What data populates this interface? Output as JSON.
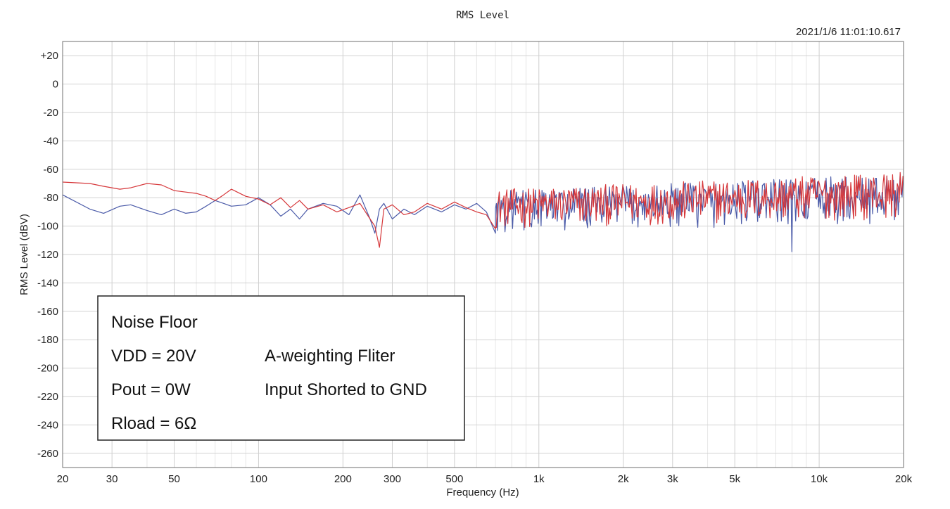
{
  "chart_data": {
    "type": "line",
    "title": "RMS Level",
    "timestamp": "2021/1/6 11:01:10.617",
    "xlabel": "Frequency (Hz)",
    "ylabel": "RMS Level (dBV)",
    "xscale": "log",
    "xlim": [
      20,
      20000
    ],
    "ylim": [
      -270,
      30
    ],
    "grid": true,
    "x_tick_values": [
      20,
      30,
      50,
      100,
      200,
      300,
      500,
      1000,
      2000,
      3000,
      5000,
      10000,
      20000
    ],
    "x_tick_labels": [
      "20",
      "30",
      "50",
      "100",
      "200",
      "300",
      "500",
      "1k",
      "2k",
      "3k",
      "5k",
      "10k",
      "20k"
    ],
    "y_tick_values": [
      20,
      0,
      -20,
      -40,
      -60,
      -80,
      -100,
      -120,
      -140,
      -160,
      -180,
      -200,
      -220,
      -240,
      -260
    ],
    "y_tick_labels": [
      "+20",
      "0",
      "-20",
      "-40",
      "-60",
      "-80",
      "-100",
      "-120",
      "-140",
      "-160",
      "-180",
      "-200",
      "-220",
      "-240",
      "-260"
    ],
    "series": [
      {
        "color": "#d6373a",
        "x": [
          20,
          25,
          28,
          32,
          35,
          40,
          45,
          50,
          60,
          65,
          70,
          75,
          80,
          90,
          100,
          110,
          120,
          130,
          140,
          150,
          170,
          190,
          210,
          230,
          250,
          260,
          270,
          280,
          300,
          330,
          360,
          400,
          450,
          500,
          550,
          600,
          650,
          700,
          750,
          800,
          900,
          1000,
          1200,
          1500,
          2000,
          2500,
          3000,
          4000,
          5000,
          6000,
          7000,
          8000,
          9000,
          10000,
          12000,
          14000,
          16000,
          18000,
          20000
        ],
        "y": [
          -69,
          -70,
          -72,
          -74,
          -73,
          -70,
          -71,
          -75,
          -77,
          -79,
          -82,
          -78,
          -74,
          -79,
          -81,
          -85,
          -80,
          -87,
          -82,
          -88,
          -85,
          -90,
          -87,
          -84,
          -95,
          -100,
          -115,
          -88,
          -85,
          -92,
          -90,
          -84,
          -88,
          -83,
          -87,
          -90,
          -92,
          -102,
          -86,
          -88,
          -82,
          -90,
          -85,
          -88,
          -82,
          -86,
          -84,
          -88,
          -82,
          -85,
          -83,
          -80,
          -84,
          -78,
          -82,
          -76,
          -80,
          -75,
          -78
        ],
        "band": {
          "from": 700,
          "to": 20000,
          "low": [
            -102,
            -95
          ],
          "high": [
            -74,
            -62
          ]
        }
      },
      {
        "color": "#4a5aa8",
        "x": [
          20,
          25,
          28,
          32,
          35,
          40,
          45,
          50,
          55,
          60,
          65,
          70,
          75,
          80,
          90,
          100,
          110,
          120,
          130,
          140,
          150,
          170,
          190,
          210,
          230,
          250,
          260,
          270,
          280,
          300,
          330,
          360,
          400,
          450,
          500,
          550,
          600,
          650,
          700,
          750,
          800,
          900,
          1000,
          1200,
          1500,
          2000,
          2500,
          3000,
          4000,
          5000,
          6000,
          7000,
          8000,
          9000,
          10000,
          12000,
          14000,
          16000,
          18000,
          20000
        ],
        "y": [
          -78,
          -88,
          -91,
          -86,
          -85,
          -89,
          -92,
          -88,
          -91,
          -90,
          -86,
          -82,
          -84,
          -86,
          -85,
          -80,
          -85,
          -93,
          -88,
          -95,
          -88,
          -84,
          -86,
          -92,
          -78,
          -95,
          -105,
          -88,
          -84,
          -95,
          -88,
          -92,
          -86,
          -90,
          -85,
          -88,
          -84,
          -90,
          -105,
          -88,
          -84,
          -88,
          -92,
          -86,
          -90,
          -84,
          -88,
          -86,
          -88,
          -84,
          -90,
          -86,
          -118,
          -88,
          -84,
          -88,
          -82,
          -86,
          -84,
          -80
        ],
        "band": {
          "from": 700,
          "to": 20000,
          "low": [
            -105,
            -98
          ],
          "high": [
            -75,
            -63
          ]
        }
      }
    ],
    "annotation_box": {
      "lines": [
        [
          "Noise Floor",
          ""
        ],
        [
          "VDD = 20V",
          "A-weighting Fliter"
        ],
        [
          "Pout = 0W",
          "Input Shorted to GND"
        ],
        [
          "Rload = 6Ω",
          ""
        ]
      ]
    }
  }
}
